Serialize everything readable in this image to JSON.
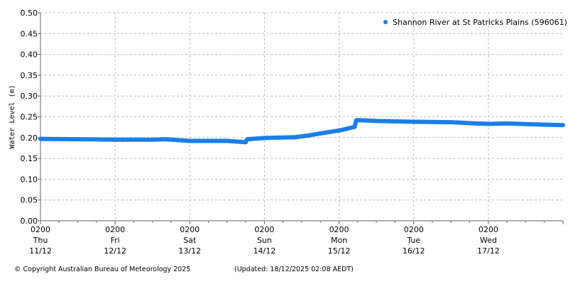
{
  "chart_data": {
    "type": "line",
    "title": "",
    "xlabel": "",
    "ylabel": "Water Level (m)",
    "ylim": [
      0,
      0.5
    ],
    "yticks": [
      "0.00",
      "0.05",
      "0.10",
      "0.15",
      "0.20",
      "0.25",
      "0.30",
      "0.35",
      "0.40",
      "0.45",
      "0.50"
    ],
    "xlim": [
      "2025-12-11 02:00",
      "2025-12-18 02:00"
    ],
    "xticks": [
      {
        "time": "0200",
        "day": "Thu",
        "date": "11/12"
      },
      {
        "time": "0200",
        "day": "Fri",
        "date": "12/12"
      },
      {
        "time": "0200",
        "day": "Sat",
        "date": "13/12"
      },
      {
        "time": "0200",
        "day": "Sun",
        "date": "14/12"
      },
      {
        "time": "0200",
        "day": "Mon",
        "date": "15/12"
      },
      {
        "time": "0200",
        "day": "Tue",
        "date": "16/12"
      },
      {
        "time": "0200",
        "day": "Wed",
        "date": "17/12"
      }
    ],
    "grid": true,
    "legend_position": "top-right",
    "series": [
      {
        "name": "Shannon River at St Patricks Plains (596061)",
        "color": "#1a7fe8",
        "points": [
          [
            "2025-12-11 02:00",
            0.197
          ],
          [
            "2025-12-11 14:00",
            0.196
          ],
          [
            "2025-12-12 02:00",
            0.195
          ],
          [
            "2025-12-12 14:00",
            0.195
          ],
          [
            "2025-12-12 18:00",
            0.196
          ],
          [
            "2025-12-13 02:00",
            0.192
          ],
          [
            "2025-12-13 14:00",
            0.192
          ],
          [
            "2025-12-13 20:00",
            0.189
          ],
          [
            "2025-12-13 20:30",
            0.196
          ],
          [
            "2025-12-14 02:00",
            0.199
          ],
          [
            "2025-12-14 12:00",
            0.201
          ],
          [
            "2025-12-14 16:00",
            0.205
          ],
          [
            "2025-12-14 20:00",
            0.21
          ],
          [
            "2025-12-15 02:00",
            0.217
          ],
          [
            "2025-12-15 05:00",
            0.222
          ],
          [
            "2025-12-15 07:00",
            0.226
          ],
          [
            "2025-12-15 07:30",
            0.241
          ],
          [
            "2025-12-15 08:00",
            0.242
          ],
          [
            "2025-12-15 14:00",
            0.24
          ],
          [
            "2025-12-16 02:00",
            0.238
          ],
          [
            "2025-12-16 14:00",
            0.237
          ],
          [
            "2025-12-16 22:00",
            0.234
          ],
          [
            "2025-12-17 02:00",
            0.233
          ],
          [
            "2025-12-17 08:00",
            0.234
          ],
          [
            "2025-12-17 20:00",
            0.231
          ],
          [
            "2025-12-18 02:00",
            0.23
          ]
        ]
      }
    ]
  },
  "footer": {
    "copyright": "© Copyright Australian Bureau of Meteorology 2025",
    "updated": "(Updated: 18/12/2025 02:08 AEDT)"
  }
}
